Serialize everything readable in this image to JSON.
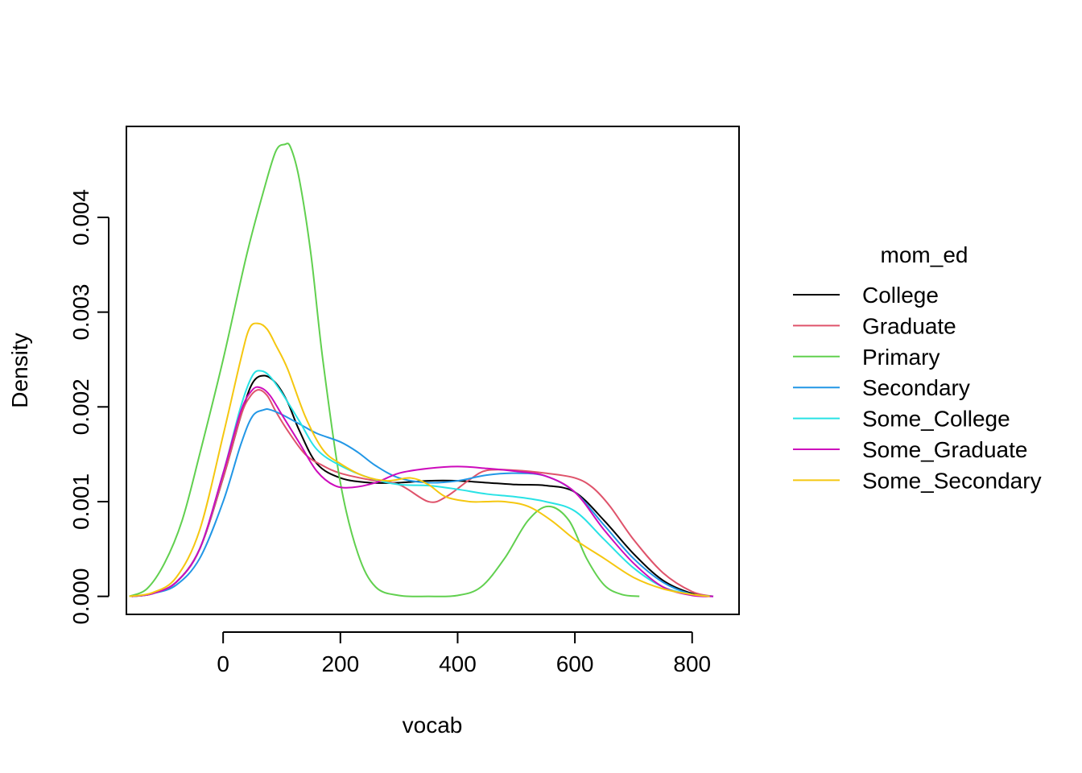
{
  "chart_data": {
    "type": "line",
    "title": "",
    "xlabel": "vocab",
    "ylabel": "Density",
    "xlim": [
      -165,
      880
    ],
    "ylim": [
      -0.00019,
      0.00496
    ],
    "xticks": [
      0,
      200,
      400,
      600,
      800
    ],
    "yticks": [
      0.0,
      0.001,
      0.002,
      0.003,
      0.004
    ],
    "xtick_labels": [
      "0",
      "200",
      "400",
      "600",
      "800"
    ],
    "ytick_labels": [
      "0.000",
      "0.001",
      "0.002",
      "0.003",
      "0.004"
    ],
    "grid": false,
    "legend": {
      "title": "mom_ed",
      "position": "right"
    },
    "series": [
      {
        "name": "College",
        "color": "#000000",
        "x": [
          -156,
          -120,
          -80,
          -40,
          0,
          30,
          50,
          70,
          90,
          110,
          130,
          160,
          200,
          250,
          300,
          350,
          400,
          450,
          500,
          550,
          600,
          650,
          700,
          750,
          800,
          836
        ],
        "y": [
          0.0,
          3e-05,
          0.00015,
          0.0005,
          0.00125,
          0.0019,
          0.00225,
          0.00233,
          0.00225,
          0.00205,
          0.00175,
          0.0014,
          0.00125,
          0.0012,
          0.0012,
          0.00122,
          0.00122,
          0.0012,
          0.00118,
          0.00117,
          0.0011,
          0.0008,
          0.00045,
          0.00017,
          3e-05,
          0.0
        ]
      },
      {
        "name": "Graduate",
        "color": "#DF536B",
        "x": [
          -156,
          -120,
          -80,
          -40,
          0,
          30,
          45,
          60,
          75,
          90,
          110,
          140,
          170,
          200,
          250,
          300,
          350,
          380,
          420,
          450,
          500,
          550,
          600,
          630,
          660,
          700,
          750,
          800,
          836
        ],
        "y": [
          0.0,
          3e-05,
          0.00015,
          0.0005,
          0.00125,
          0.0019,
          0.0021,
          0.00218,
          0.00212,
          0.00195,
          0.00175,
          0.0015,
          0.00138,
          0.0013,
          0.00123,
          0.00118,
          0.001,
          0.00105,
          0.00123,
          0.00133,
          0.00133,
          0.0013,
          0.00125,
          0.00115,
          0.00095,
          0.0006,
          0.00025,
          5e-05,
          0.0
        ]
      },
      {
        "name": "Primary",
        "color": "#61D04F",
        "x": [
          -160,
          -130,
          -100,
          -70,
          -40,
          0,
          40,
          70,
          90,
          105,
          115,
          130,
          150,
          170,
          200,
          230,
          260,
          300,
          350,
          400,
          440,
          480,
          520,
          555,
          590,
          620,
          650,
          680,
          710
        ],
        "y": [
          0.0,
          8e-05,
          0.00035,
          0.0008,
          0.0015,
          0.0025,
          0.0036,
          0.0043,
          0.0047,
          0.00477,
          0.00474,
          0.0044,
          0.0036,
          0.0025,
          0.0012,
          0.00045,
          0.0001,
          1e-05,
          0.0,
          1e-05,
          0.0001,
          0.0004,
          0.0008,
          0.00095,
          0.0008,
          0.0004,
          0.00012,
          2e-05,
          0.0
        ]
      },
      {
        "name": "Secondary",
        "color": "#2297E6",
        "x": [
          -156,
          -120,
          -80,
          -40,
          0,
          30,
          50,
          70,
          80,
          100,
          130,
          160,
          200,
          230,
          260,
          300,
          350,
          400,
          450,
          500,
          550,
          600,
          650,
          700,
          750,
          800,
          836
        ],
        "y": [
          0.0,
          3e-05,
          0.00012,
          0.0004,
          0.001,
          0.0016,
          0.0019,
          0.00197,
          0.00197,
          0.00192,
          0.00182,
          0.00172,
          0.00163,
          0.00152,
          0.00138,
          0.00125,
          0.0012,
          0.00122,
          0.00128,
          0.0013,
          0.00127,
          0.0011,
          0.00075,
          0.0004,
          0.00015,
          2e-05,
          0.0
        ]
      },
      {
        "name": "Some_College",
        "color": "#28E2E5",
        "x": [
          -156,
          -120,
          -80,
          -40,
          0,
          30,
          50,
          65,
          80,
          100,
          130,
          160,
          200,
          250,
          300,
          350,
          400,
          450,
          500,
          550,
          600,
          650,
          700,
          750,
          800,
          836
        ],
        "y": [
          0.0,
          3e-05,
          0.00015,
          0.0005,
          0.0013,
          0.002,
          0.00233,
          0.00238,
          0.00232,
          0.00215,
          0.00185,
          0.00155,
          0.00138,
          0.00125,
          0.00118,
          0.00117,
          0.00113,
          0.00108,
          0.00105,
          0.001,
          0.0009,
          0.0006,
          0.0003,
          0.0001,
          2e-05,
          0.0
        ]
      },
      {
        "name": "Some_Graduate",
        "color": "#CD0BBC",
        "x": [
          -156,
          -120,
          -80,
          -40,
          0,
          30,
          50,
          65,
          80,
          100,
          130,
          160,
          190,
          220,
          260,
          300,
          350,
          400,
          450,
          500,
          550,
          600,
          650,
          700,
          750,
          800,
          836
        ],
        "y": [
          0.0,
          3e-05,
          0.00015,
          0.0005,
          0.0013,
          0.00195,
          0.00218,
          0.0022,
          0.00212,
          0.00192,
          0.00162,
          0.00132,
          0.00117,
          0.00115,
          0.0012,
          0.0013,
          0.00135,
          0.00137,
          0.00135,
          0.00132,
          0.00127,
          0.0011,
          0.0007,
          0.00035,
          0.0001,
          1e-05,
          0.0
        ]
      },
      {
        "name": "Some_Secondary",
        "color": "#F5C710",
        "x": [
          -160,
          -120,
          -80,
          -40,
          0,
          30,
          45,
          60,
          75,
          90,
          110,
          140,
          170,
          200,
          240,
          280,
          320,
          350,
          380,
          420,
          450,
          480,
          520,
          560,
          600,
          650,
          700,
          750,
          800,
          830
        ],
        "y": [
          0.0,
          4e-05,
          0.0002,
          0.0007,
          0.0017,
          0.0025,
          0.00283,
          0.00288,
          0.00282,
          0.00265,
          0.0024,
          0.0019,
          0.00155,
          0.0014,
          0.00127,
          0.00122,
          0.00125,
          0.00118,
          0.00105,
          0.001,
          0.001,
          0.001,
          0.00095,
          0.0008,
          0.0006,
          0.0004,
          0.0002,
          8e-05,
          2e-05,
          0.0
        ]
      }
    ]
  }
}
